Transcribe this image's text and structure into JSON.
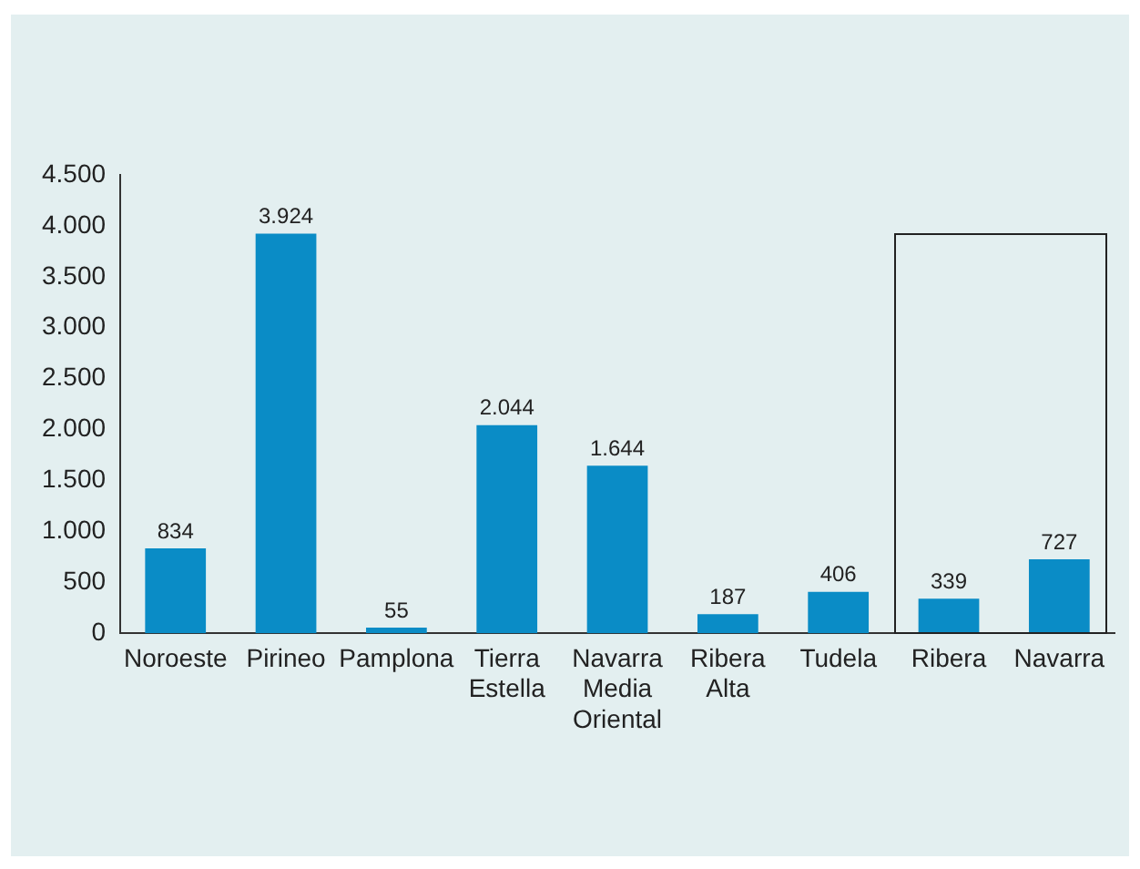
{
  "chart_data": {
    "type": "bar",
    "categories": [
      "Noroeste",
      "Pirineo",
      "Pamplona",
      "Tierra Estella",
      "Navarra Media Oriental",
      "Ribera Alta",
      "Tudela",
      "Ribera",
      "Navarra"
    ],
    "values": [
      834,
      3924,
      55,
      2044,
      1644,
      187,
      406,
      339,
      727
    ],
    "value_labels": [
      "834",
      "3.924",
      "55",
      "2.044",
      "1.644",
      "187",
      "406",
      "339",
      "727"
    ],
    "color": "#0a8cc6",
    "ylim": [
      0,
      4500
    ],
    "yticks": [
      {
        "value": 0,
        "label": "0"
      },
      {
        "value": 500,
        "label": "500"
      },
      {
        "value": 1000,
        "label": "1.000"
      },
      {
        "value": 1500,
        "label": "1.500"
      },
      {
        "value": 2000,
        "label": "2.000"
      },
      {
        "value": 2500,
        "label": "2.500"
      },
      {
        "value": 3000,
        "label": "3.000"
      },
      {
        "value": 3500,
        "label": "3.500"
      },
      {
        "value": 4000,
        "label": "4.000"
      },
      {
        "value": 4500,
        "label": "4.500"
      }
    ],
    "grid": false,
    "legend": false
  }
}
